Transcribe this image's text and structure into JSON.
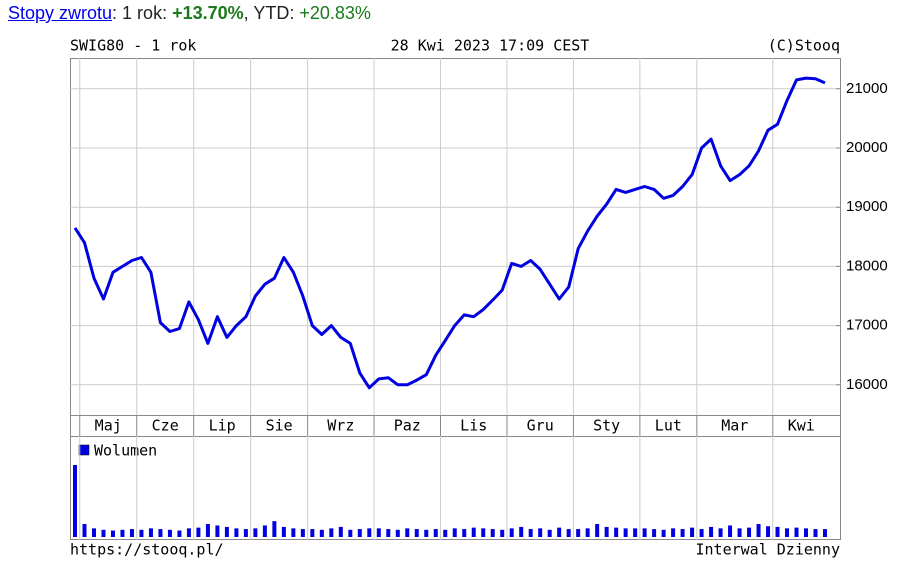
{
  "header": {
    "link": "Stopy zwrotu",
    "text1": ": 1 rok: ",
    "value1": "+13.70%",
    "text2": ", YTD: ",
    "value2": "+20.83%"
  },
  "footer": {
    "url": "https://stooq.pl/",
    "interval": "Interwal Dzienny"
  },
  "chart_data": [
    {
      "type": "line",
      "title": "SWIG80 - 1 rok",
      "subtitle": "28 Kwi 2023 17:09 CEST",
      "source": "(C)Stooq",
      "color": "#0000e0",
      "grid": true,
      "categories": [
        null,
        "Maj",
        "Cze",
        "Lip",
        "Sie",
        "Wrz",
        "Paz",
        "Lis",
        "Gru",
        "Sty",
        "Lut",
        "Mar",
        "Kwi"
      ],
      "values": [
        [
          18650
        ],
        [
          18400,
          17800,
          17450,
          17900,
          18000,
          18100
        ],
        [
          18150,
          17900,
          17050,
          16900,
          16950,
          17400
        ],
        [
          17100,
          16700,
          17150,
          16800,
          17000,
          17150
        ],
        [
          17500,
          17700,
          17800,
          18150,
          17900,
          17500
        ],
        [
          17000,
          16850,
          17000,
          16800,
          16700,
          16200,
          15950
        ],
        [
          16100,
          16120,
          16000,
          16000,
          16080,
          16170,
          16500
        ],
        [
          16750,
          17000,
          17180,
          17150,
          17270,
          17430,
          17600
        ],
        [
          18050,
          18000,
          18100,
          17950,
          17700,
          17450,
          17650
        ],
        [
          18300,
          18600,
          18850,
          19050,
          19300,
          19250,
          19300
        ],
        [
          19350,
          19300,
          19150,
          19200,
          19350,
          19550
        ],
        [
          20000,
          20150,
          19700,
          19450,
          19550,
          19700,
          19950,
          20300
        ],
        [
          20400,
          20800,
          21150,
          21180,
          21170,
          21100
        ]
      ],
      "ylim": [
        15490,
        21520
      ],
      "yticks": [
        16000,
        17000,
        18000,
        19000,
        20000,
        21000
      ]
    },
    {
      "type": "bar",
      "series": [
        {
          "name": "Wolumen",
          "color": "#0000e0",
          "values": [
            [
              100
            ],
            [
              18,
              12,
              10,
              9,
              10,
              11
            ],
            [
              10,
              12,
              11,
              10,
              9,
              12
            ],
            [
              13,
              18,
              16,
              14,
              12,
              11
            ],
            [
              12,
              16,
              22,
              14,
              12,
              11
            ],
            [
              11,
              10,
              12,
              14,
              10,
              11,
              12
            ],
            [
              12,
              11,
              10,
              12,
              11,
              10,
              11
            ],
            [
              10,
              12,
              11,
              13,
              12,
              11,
              10
            ],
            [
              12,
              14,
              11,
              12,
              10,
              13,
              11
            ],
            [
              11,
              12,
              18,
              14,
              13,
              12,
              12
            ],
            [
              12,
              11,
              10,
              12,
              11,
              13
            ],
            [
              11,
              14,
              12,
              16,
              12,
              13,
              18,
              15
            ],
            [
              14,
              12,
              13,
              12,
              11,
              11
            ]
          ]
        }
      ]
    }
  ]
}
